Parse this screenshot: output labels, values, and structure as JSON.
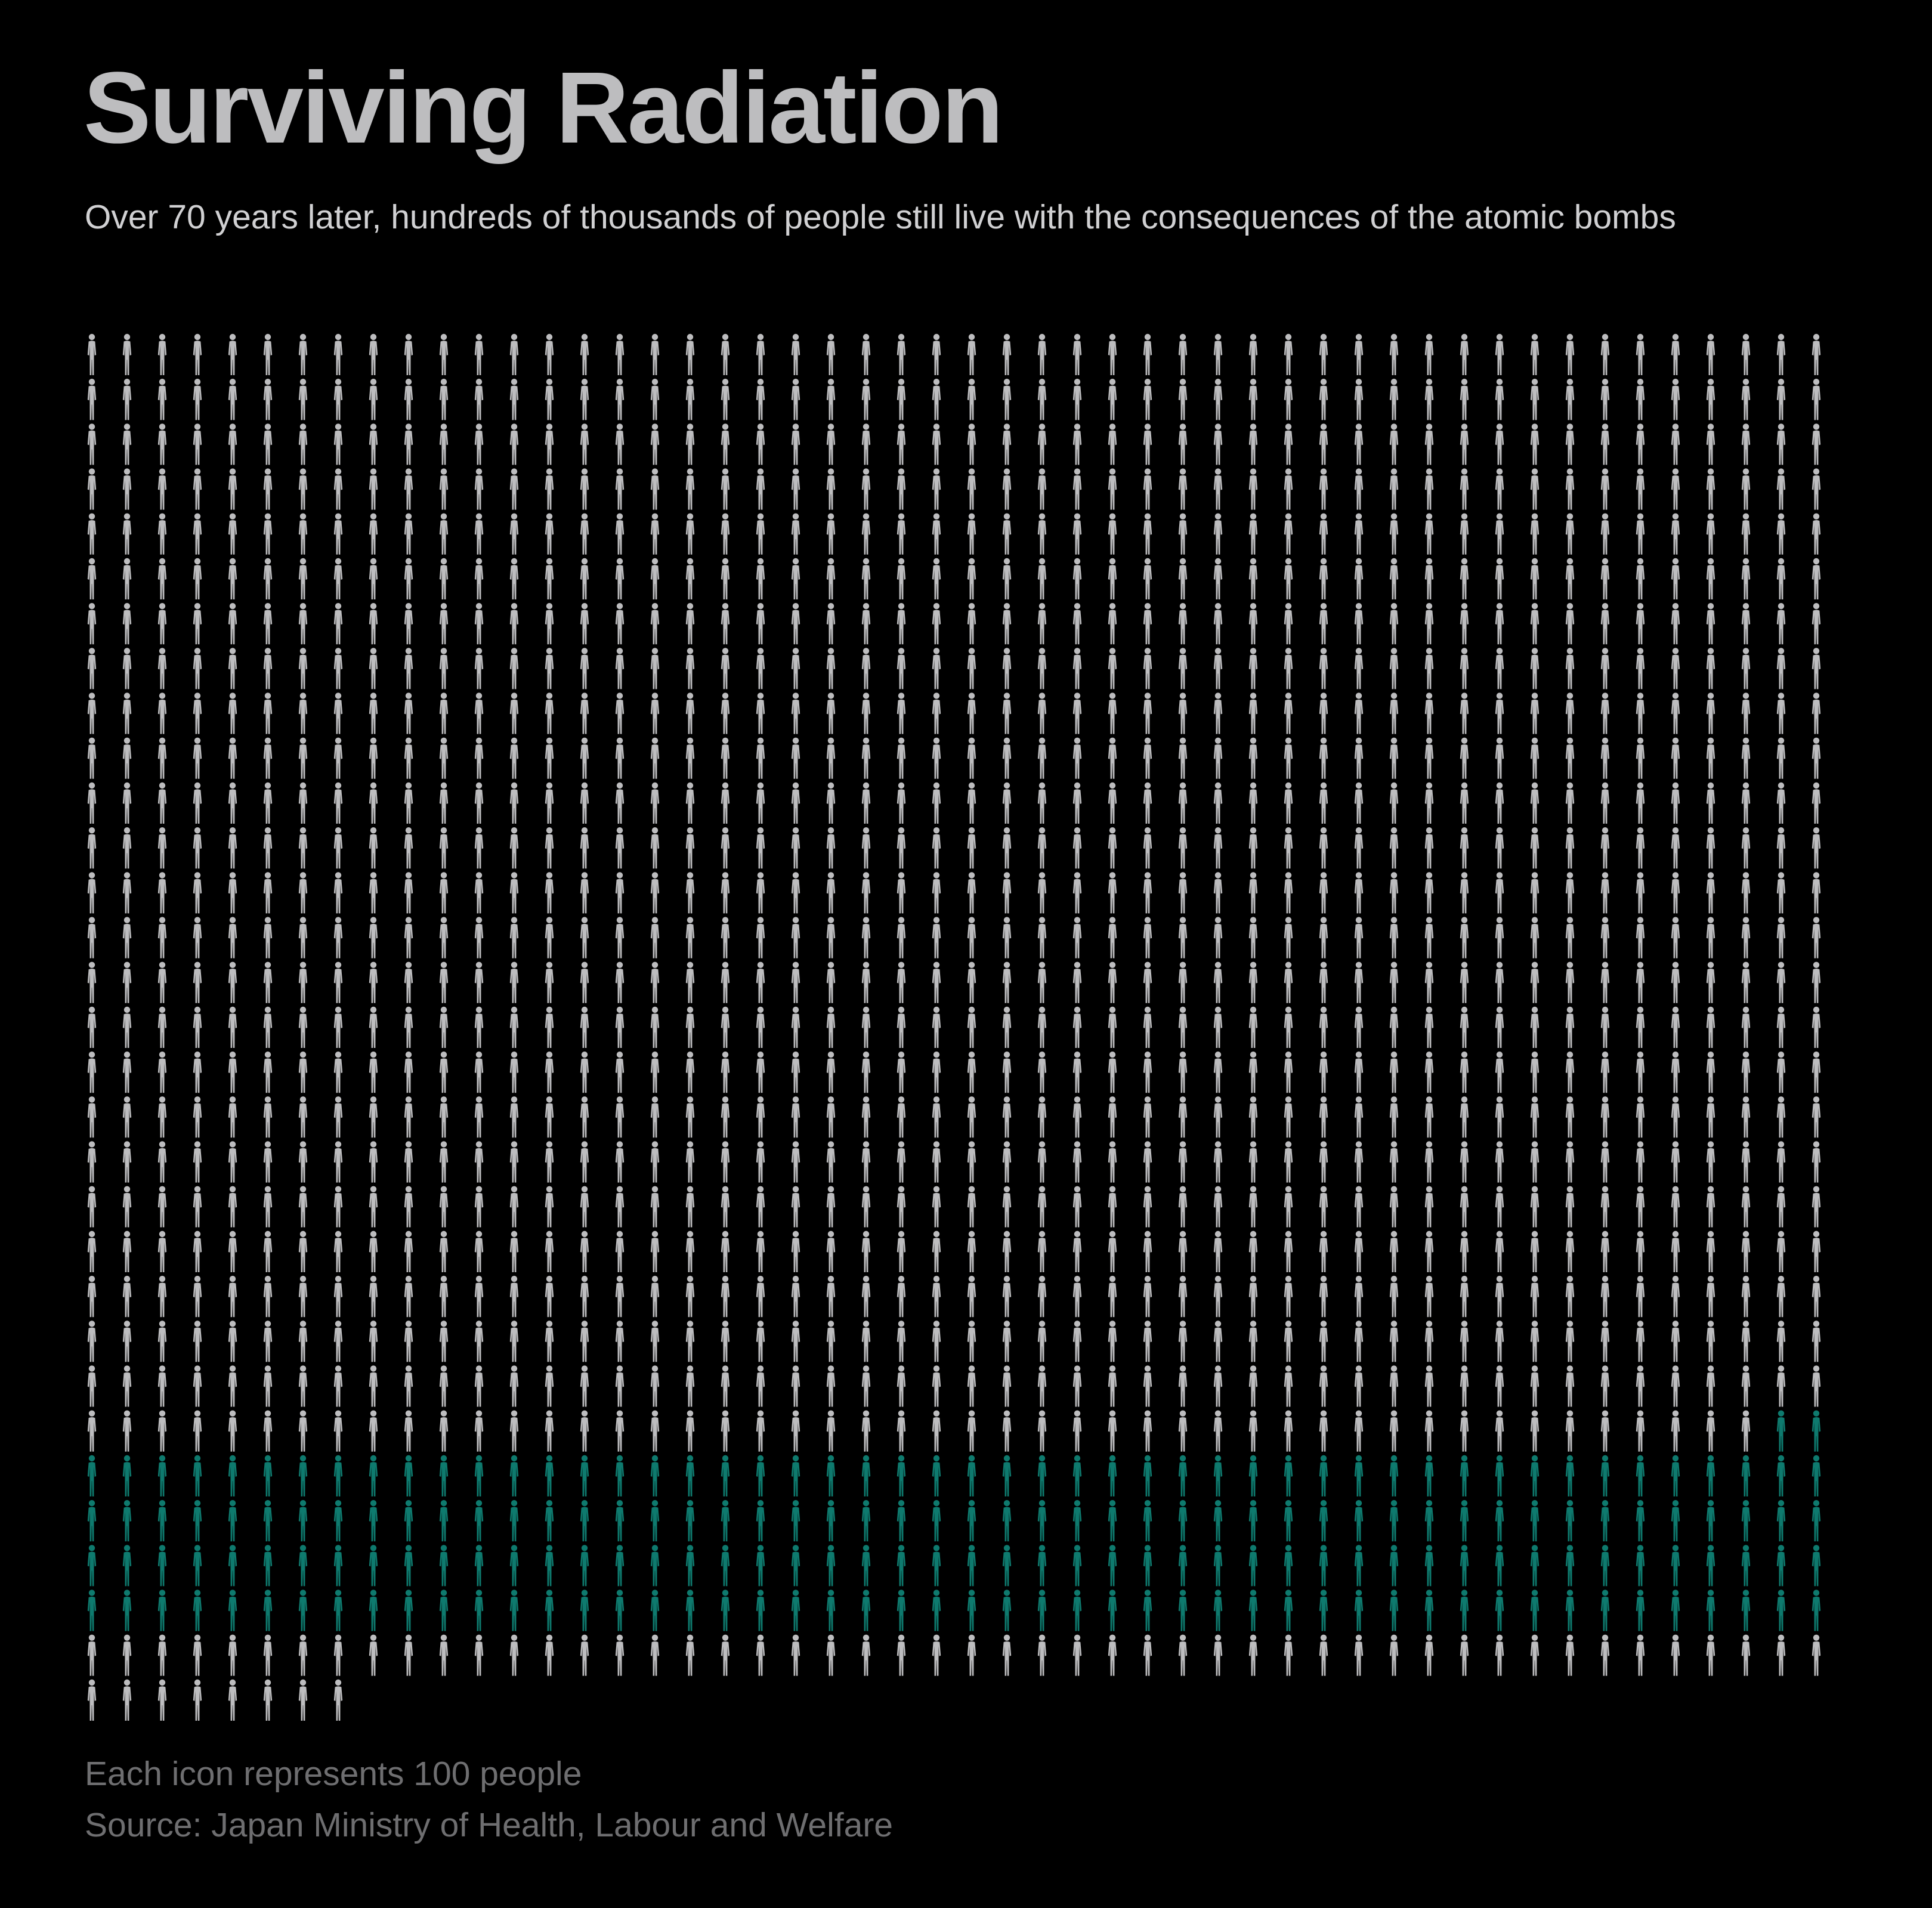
{
  "title": "Surviving Radiation",
  "subtitle": "Over 70 years later, hundreds of thousands of people still live with the consequences of the atomic bombs",
  "note": "Each icon represents 100 people",
  "source": "Source: Japan Ministry of Health, Labour and Welfare",
  "colors": {
    "background": "#000000",
    "default_icon": "#bdbdbf",
    "highlight_icon": "#0e7a6e"
  },
  "chart_data": {
    "type": "pictogram",
    "icon": "person-icon",
    "people_per_icon": 100,
    "columns": 50,
    "rows": 31,
    "total_icons": 1508,
    "highlighted_icons": 202
  }
}
